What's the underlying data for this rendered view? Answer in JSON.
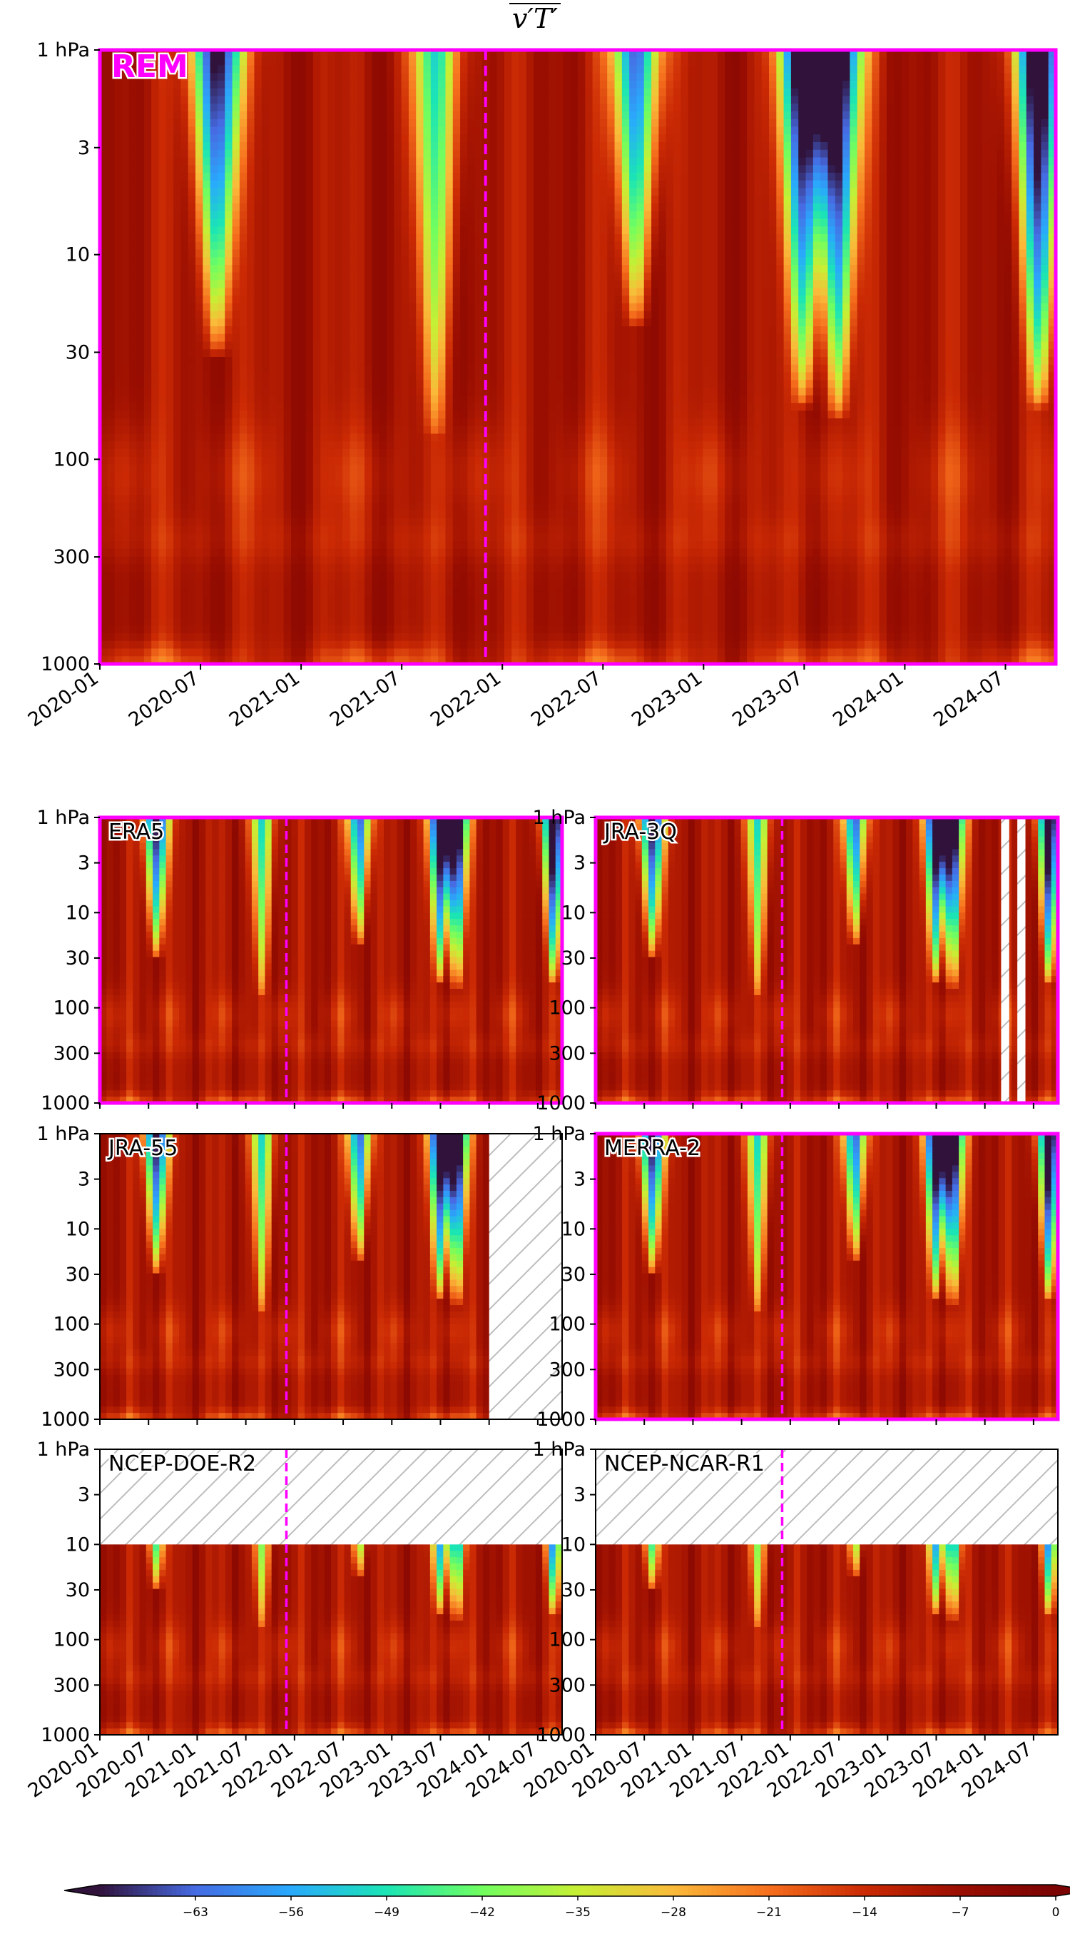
{
  "title": "v′T′",
  "colors": {
    "highlight": "#ff00ff",
    "eventline": "#ff00ff",
    "frame": "#000000"
  },
  "chart_data": {
    "type": "heatmap",
    "title": "v′T′",
    "colormap": "turbo",
    "ytick_labels": [
      "1 hPa",
      "3",
      "10",
      "30",
      "100",
      "300",
      "1000"
    ],
    "y_pressure_levels_hPa": [
      1,
      3,
      10,
      30,
      100,
      300,
      1000
    ],
    "y_scale": "log",
    "x_range": [
      "2020-01",
      "2024-10"
    ],
    "xtick_labels": [
      "2020-01",
      "2020-07",
      "2021-01",
      "2021-07",
      "2022-01",
      "2022-07",
      "2023-01",
      "2023-07",
      "2024-01",
      "2024-07"
    ],
    "event_line_date": "2021-12",
    "colorbar": {
      "ticks": [
        -63,
        -56,
        -49,
        -42,
        -35,
        -28,
        -21,
        -14,
        -7,
        0
      ],
      "tick_labels": [
        "−63",
        "−56",
        "−49",
        "−42",
        "−35",
        "−28",
        "−21",
        "−14",
        "−7",
        "0"
      ],
      "range": [
        -70,
        0
      ],
      "extend": "both"
    },
    "strong_events": [
      {
        "center": "2020-08",
        "top_hPa": 1,
        "bottom_hPa": 14,
        "min_value": -68
      },
      {
        "center": "2021-09",
        "top_hPa": 1,
        "bottom_hPa": 35,
        "min_value": -38
      },
      {
        "center": "2022-09",
        "top_hPa": 1,
        "bottom_hPa": 10,
        "min_value": -55
      },
      {
        "center": "2023-07",
        "top_hPa": 1,
        "bottom_hPa": 25,
        "min_value": -70
      },
      {
        "center": "2023-09",
        "top_hPa": 1,
        "bottom_hPa": 28,
        "min_value": -70
      },
      {
        "center": "2024-09",
        "top_hPa": 1,
        "bottom_hPa": 25,
        "min_value": -70
      }
    ],
    "panels": [
      {
        "name": "REM",
        "highlighted": true,
        "missing_levels_above_hPa": null,
        "missing_after": null
      },
      {
        "name": "ERA5",
        "highlighted": true,
        "missing_levels_above_hPa": null,
        "missing_after": null
      },
      {
        "name": "JRA-3Q",
        "highlighted": true,
        "missing_levels_above_hPa": null,
        "missing_after": null,
        "missing_periods": [
          [
            "2024-03",
            "2024-04"
          ],
          [
            "2024-05",
            "2024-06"
          ]
        ]
      },
      {
        "name": "JRA-55",
        "highlighted": false,
        "missing_levels_above_hPa": null,
        "missing_after": "2024-01"
      },
      {
        "name": "MERRA-2",
        "highlighted": true,
        "missing_levels_above_hPa": null,
        "missing_after": null
      },
      {
        "name": "NCEP-DOE-R2",
        "highlighted": false,
        "missing_levels_above_hPa": 10,
        "missing_after": null
      },
      {
        "name": "NCEP-NCAR-R1",
        "highlighted": false,
        "missing_levels_above_hPa": 10,
        "missing_after": null
      }
    ]
  }
}
